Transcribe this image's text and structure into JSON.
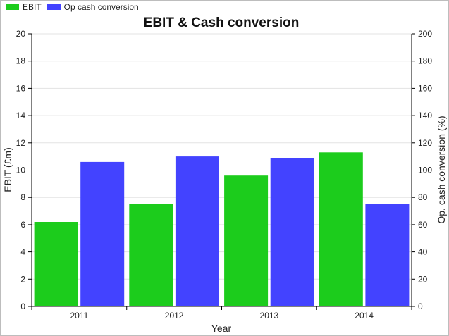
{
  "chart_data": {
    "type": "bar",
    "title": "EBIT & Cash conversion",
    "xlabel": "Year",
    "ylabel_left": "EBIT (£m)",
    "ylabel_right": "Op. cash conversion (%)",
    "categories": [
      "2011",
      "2012",
      "2013",
      "2014"
    ],
    "ylim_left": [
      0,
      20
    ],
    "ylim_right": [
      0,
      200
    ],
    "yticks_left": [
      "0",
      "2",
      "4",
      "6",
      "8",
      "10",
      "12",
      "14",
      "16",
      "18",
      "20"
    ],
    "yticks_right": [
      "0",
      "20",
      "40",
      "60",
      "80",
      "100",
      "120",
      "140",
      "160",
      "180",
      "200"
    ],
    "grid": true,
    "legend_position": "top-left",
    "series": [
      {
        "name": "EBIT",
        "axis": "left",
        "color": "#1ccc1c",
        "values": [
          6.2,
          7.5,
          9.6,
          11.3
        ]
      },
      {
        "name": "Op cash conversion",
        "axis": "right",
        "color": "#4343ff",
        "values": [
          106,
          110,
          109,
          75
        ]
      }
    ]
  }
}
